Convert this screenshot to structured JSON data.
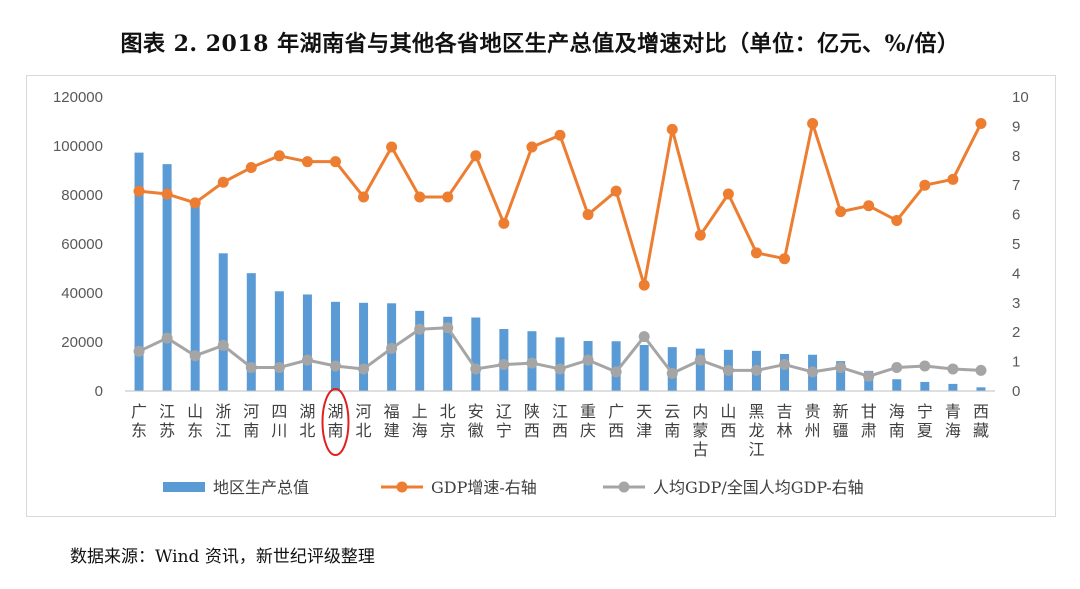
{
  "title": "图表 2.   2018 年湖南省与其他各省地区生产总值及增速对比（单位：亿元、%/倍）",
  "source": "数据来源：Wind 资讯，新世纪评级整理",
  "colors": {
    "bar": "#5b9bd5",
    "growth": "#ed7d31",
    "ratio": "#a5a5a5",
    "highlight": "#e02020"
  },
  "chart_data": {
    "type": "bar",
    "categories": [
      "广东",
      "江苏",
      "山东",
      "浙江",
      "河南",
      "四川",
      "湖北",
      "湖南",
      "河北",
      "福建",
      "上海",
      "北京",
      "安徽",
      "辽宁",
      "陕西",
      "江西",
      "重庆",
      "广西",
      "天津",
      "云南",
      "内蒙古",
      "山西",
      "黑龙江",
      "吉林",
      "贵州",
      "新疆",
      "甘肃",
      "海南",
      "宁夏",
      "青海",
      "西藏"
    ],
    "highlight_category": "湖南",
    "legend_position": "bottom",
    "grid": false,
    "series": [
      {
        "name": "地区生产总值",
        "type": "bar",
        "axis": "left",
        "values": [
          97300,
          92600,
          76500,
          56200,
          48100,
          40700,
          39400,
          36400,
          36000,
          35800,
          32700,
          30300,
          30000,
          25300,
          24400,
          21900,
          20400,
          20300,
          18800,
          17900,
          17300,
          16800,
          16400,
          15100,
          14800,
          12200,
          8200,
          4800,
          3700,
          2900,
          1500
        ]
      },
      {
        "name": "GDP增速-右轴",
        "type": "line",
        "axis": "right",
        "values": [
          6.8,
          6.7,
          6.4,
          7.1,
          7.6,
          8.0,
          7.8,
          7.8,
          6.6,
          8.3,
          6.6,
          6.6,
          8.0,
          5.7,
          8.3,
          8.7,
          6.0,
          6.8,
          3.6,
          8.9,
          5.3,
          6.7,
          4.7,
          4.5,
          9.1,
          6.1,
          6.3,
          5.8,
          7.0,
          7.2,
          9.1
        ]
      },
      {
        "name": "人均GDP/全国人均GDP-右轴",
        "type": "line",
        "axis": "right",
        "values": [
          1.35,
          1.8,
          1.2,
          1.55,
          0.8,
          0.8,
          1.05,
          0.85,
          0.75,
          1.45,
          2.1,
          2.15,
          0.75,
          0.9,
          0.95,
          0.75,
          1.05,
          0.65,
          1.85,
          0.6,
          1.05,
          0.7,
          0.7,
          0.9,
          0.65,
          0.8,
          0.5,
          0.8,
          0.85,
          0.75,
          0.7
        ]
      }
    ],
    "y_left": {
      "ylim": [
        0,
        120000
      ],
      "ticks": [
        0,
        20000,
        40000,
        60000,
        80000,
        100000,
        120000
      ]
    },
    "y_right": {
      "ylim": [
        0,
        10
      ],
      "ticks": [
        0,
        1,
        2,
        3,
        4,
        5,
        6,
        7,
        8,
        9,
        10
      ]
    }
  }
}
